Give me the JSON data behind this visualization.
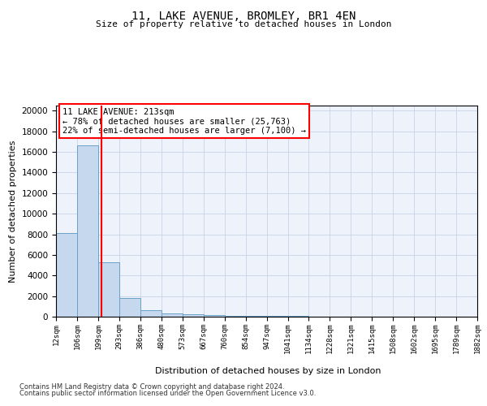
{
  "title": "11, LAKE AVENUE, BROMLEY, BR1 4EN",
  "subtitle": "Size of property relative to detached houses in London",
  "xlabel": "Distribution of detached houses by size in London",
  "ylabel": "Number of detached properties",
  "property_size": 213,
  "annotation_text": "11 LAKE AVENUE: 213sqm\n← 78% of detached houses are smaller (25,763)\n22% of semi-detached houses are larger (7,100) →",
  "footer1": "Contains HM Land Registry data © Crown copyright and database right 2024.",
  "footer2": "Contains public sector information licensed under the Open Government Licence v3.0.",
  "bar_color": "#c5d8ee",
  "bar_edge_color": "#6aa0c8",
  "vline_color": "red",
  "grid_color": "#c8d4e8",
  "background_color": "#eef2fa",
  "bin_edges": [
    12,
    106,
    199,
    293,
    386,
    480,
    573,
    667,
    760,
    854,
    947,
    1041,
    1134,
    1228,
    1321,
    1415,
    1508,
    1602,
    1695,
    1789,
    1882
  ],
  "bin_labels": [
    "12sqm",
    "106sqm",
    "199sqm",
    "293sqm",
    "386sqm",
    "480sqm",
    "573sqm",
    "667sqm",
    "760sqm",
    "854sqm",
    "947sqm",
    "1041sqm",
    "1134sqm",
    "1228sqm",
    "1321sqm",
    "1415sqm",
    "1508sqm",
    "1602sqm",
    "1695sqm",
    "1789sqm",
    "1882sqm"
  ],
  "bar_heights": [
    8100,
    16600,
    5300,
    1800,
    650,
    300,
    230,
    160,
    110,
    80,
    55,
    45,
    35,
    25,
    20,
    18,
    13,
    10,
    8,
    6
  ],
  "ylim": [
    0,
    20500
  ],
  "yticks": [
    0,
    2000,
    4000,
    6000,
    8000,
    10000,
    12000,
    14000,
    16000,
    18000,
    20000
  ]
}
